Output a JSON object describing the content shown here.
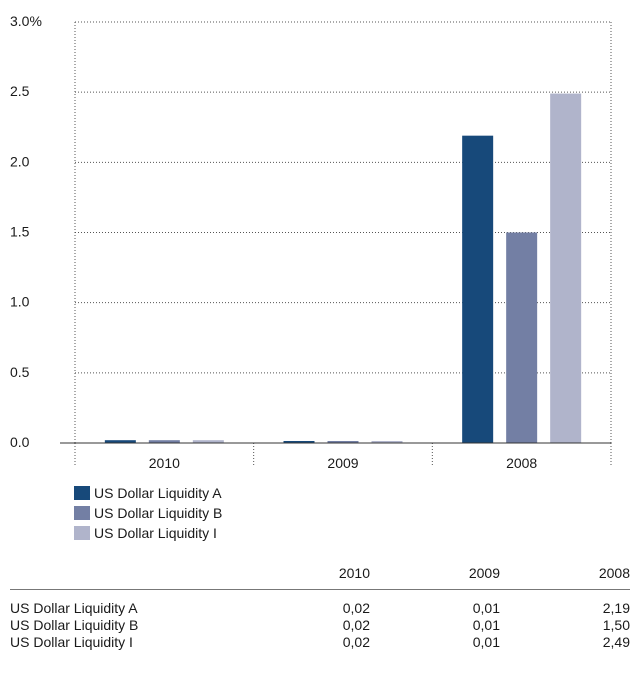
{
  "chart_data": {
    "type": "bar",
    "categories": [
      "2010",
      "2009",
      "2008"
    ],
    "series": [
      {
        "name": "US Dollar Liquidity A",
        "values": [
          0.02,
          0.01,
          2.19
        ],
        "color": "#17497a"
      },
      {
        "name": "US Dollar Liquidity B",
        "values": [
          0.02,
          0.01,
          1.5
        ],
        "color": "#737fa4"
      },
      {
        "name": "US Dollar Liquidity I",
        "values": [
          0.02,
          0.01,
          2.49
        ],
        "color": "#b0b4cb"
      }
    ],
    "y_ticks": [
      "0.0",
      "0.5",
      "1.0",
      "1.5",
      "2.0",
      "2.5",
      "3.0%"
    ],
    "ylim": [
      0,
      3.0
    ],
    "title": "",
    "xlabel": "",
    "ylabel": "",
    "grid": true,
    "legend_position": "bottom-left"
  },
  "table": {
    "headers": [
      "",
      "2010",
      "2009",
      "2008"
    ],
    "rows": [
      {
        "label": "US Dollar Liquidity A",
        "values": [
          "0,02",
          "0,01",
          "2,19"
        ]
      },
      {
        "label": "US Dollar Liquidity B",
        "values": [
          "0,02",
          "0,01",
          "1,50"
        ]
      },
      {
        "label": "US Dollar Liquidity I",
        "values": [
          "0,02",
          "0,01",
          "2,49"
        ]
      }
    ]
  }
}
